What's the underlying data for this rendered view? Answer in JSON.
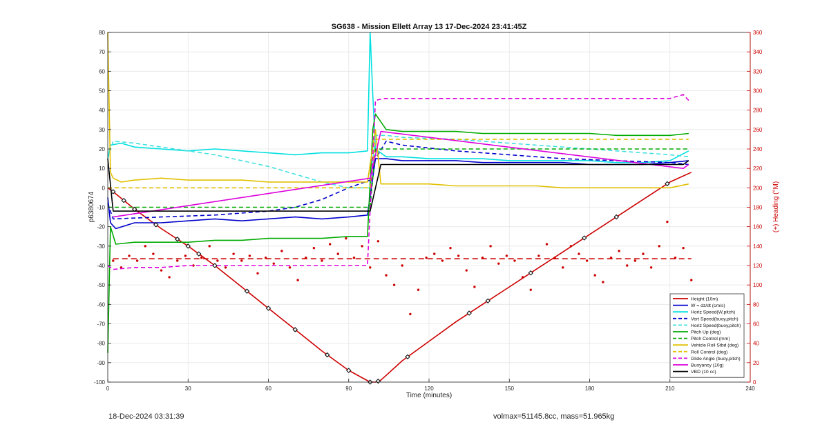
{
  "chart_data": {
    "type": "line",
    "title": "SG638 - Mission Ellett Array 13 17-Dec-2024 23:41:45Z",
    "xlabel": "Time (minutes)",
    "ylabel_left": "p6380674",
    "ylabel_right": "(+) Heading (°M)",
    "xlim": [
      0,
      240
    ],
    "ylim_left": [
      -100,
      80
    ],
    "ylim_right": [
      0,
      360
    ],
    "x_ticks": [
      0,
      30,
      60,
      90,
      120,
      150,
      180,
      210,
      240
    ],
    "y_ticks_left": [
      -100,
      -90,
      -80,
      -70,
      -60,
      -50,
      -40,
      -30,
      -20,
      -10,
      0,
      10,
      20,
      30,
      40,
      50,
      60,
      70,
      80
    ],
    "y_ticks_right": [
      0,
      20,
      40,
      60,
      80,
      100,
      120,
      140,
      160,
      180,
      200,
      220,
      240,
      260,
      280,
      300,
      320,
      340,
      360
    ],
    "grid": true,
    "legend_position": "bottom-right",
    "series": [
      {
        "name": "Height (10m)",
        "color": "#cc0000",
        "style": "solid",
        "x": [
          0,
          2,
          10,
          20,
          30,
          40,
          50,
          60,
          70,
          80,
          90,
          98,
          100,
          102,
          110,
          120,
          130,
          140,
          150,
          160,
          170,
          180,
          190,
          200,
          210,
          218
        ],
        "y": [
          0,
          -2,
          -11,
          -21,
          -30,
          -40,
          -51,
          -62,
          -73,
          -84,
          -94,
          -100,
          -100,
          -99,
          -89,
          -79,
          -69,
          -60,
          -51,
          -42,
          -33,
          -24,
          -15,
          -6,
          3,
          8
        ]
      },
      {
        "name": "W = dz/dt (cm/s)",
        "color": "#0000cc",
        "style": "solid",
        "x": [
          0,
          1,
          3,
          10,
          20,
          30,
          40,
          50,
          60,
          70,
          80,
          90,
          97,
          100,
          104,
          110,
          120,
          130,
          140,
          150,
          160,
          170,
          180,
          190,
          200,
          210,
          217
        ],
        "y": [
          -5,
          -18,
          -21,
          -18,
          -18,
          -17,
          -16,
          -17,
          -16,
          -15,
          -16,
          -15,
          -14,
          15,
          15,
          14,
          14,
          14,
          13,
          13,
          13,
          13,
          12,
          12,
          12,
          13,
          14
        ]
      },
      {
        "name": "Horiz Speed(W,pitch)",
        "color": "#00e0e0",
        "style": "solid",
        "x": [
          0,
          1,
          5,
          10,
          20,
          30,
          40,
          50,
          60,
          70,
          80,
          90,
          97,
          98,
          99,
          100,
          104,
          110,
          120,
          130,
          140,
          150,
          160,
          170,
          180,
          190,
          200,
          210,
          217
        ],
        "y": [
          15,
          22,
          23,
          21,
          20,
          19,
          20,
          19,
          18,
          17,
          18,
          18,
          19,
          80,
          48,
          20,
          16,
          16,
          15,
          15,
          15,
          14,
          14,
          14,
          14,
          13,
          13,
          14,
          19
        ]
      },
      {
        "name": "Vert Speed(buoy,pitch)",
        "color": "#0000cc",
        "style": "dashed",
        "x": [
          0,
          2,
          20,
          40,
          60,
          70,
          80,
          90,
          98,
          100,
          104,
          110,
          130,
          150,
          170,
          190,
          210,
          217
        ],
        "y": [
          -8,
          -16,
          -15,
          -14,
          -12,
          -10,
          -6,
          0,
          4,
          15,
          24,
          22,
          19,
          17,
          15,
          14,
          13,
          12
        ]
      },
      {
        "name": "Horiz Speed(buoy,pitch)",
        "color": "#40e0e0",
        "style": "dashed",
        "x": [
          0,
          2,
          10,
          20,
          30,
          40,
          50,
          60,
          70,
          80,
          90,
          98,
          100,
          104,
          110,
          130,
          150,
          170,
          190,
          210,
          217
        ],
        "y": [
          15,
          24,
          23,
          21,
          19,
          17,
          14,
          11,
          7,
          3,
          0,
          0,
          27,
          27,
          26,
          25,
          23,
          21,
          19,
          17,
          16
        ]
      },
      {
        "name": "Pitch Up (deg)",
        "color": "#00aa00",
        "style": "solid",
        "x": [
          0,
          1,
          3,
          10,
          20,
          30,
          40,
          50,
          60,
          70,
          80,
          90,
          97,
          99,
          100,
          104,
          110,
          120,
          130,
          140,
          150,
          160,
          170,
          180,
          190,
          200,
          210,
          217
        ],
        "y": [
          -85,
          -20,
          -29,
          -28,
          -28,
          -28,
          -27,
          -27,
          -26,
          -26,
          -26,
          -25,
          -25,
          30,
          38,
          30,
          29,
          29,
          29,
          28,
          28,
          28,
          28,
          28,
          27,
          27,
          27,
          28
        ]
      },
      {
        "name": "Pitch Control (mm)",
        "color": "#00aa00",
        "style": "dashed",
        "x": [
          0,
          2,
          98,
          100,
          217
        ],
        "y": [
          -10,
          -10,
          -10,
          20,
          20
        ]
      },
      {
        "name": "Vehicle Roll Stbd (deg)",
        "color": "#e0c000",
        "style": "solid",
        "x": [
          0,
          1,
          2,
          5,
          10,
          20,
          30,
          40,
          50,
          60,
          70,
          80,
          90,
          97,
          100,
          102,
          110,
          120,
          130,
          140,
          150,
          160,
          170,
          180,
          190,
          200,
          210,
          217
        ],
        "y": [
          80,
          8,
          5,
          3,
          4,
          5,
          4,
          4,
          4,
          3,
          3,
          3,
          3,
          3,
          30,
          2,
          2,
          2,
          1,
          1,
          1,
          1,
          0,
          0,
          0,
          0,
          0,
          2
        ]
      },
      {
        "name": "Roll Control (deg)",
        "color": "#e0c000",
        "style": "dashed",
        "x": [
          0,
          2,
          98,
          100,
          217
        ],
        "y": [
          0,
          0,
          0,
          25,
          25
        ]
      },
      {
        "name": "Glide Angle (buoy,pitch)",
        "color": "#dd00dd",
        "style": "dashed",
        "x": [
          0,
          2,
          10,
          20,
          30,
          40,
          50,
          60,
          70,
          80,
          90,
          97,
          100,
          103,
          110,
          120,
          130,
          140,
          150,
          160,
          170,
          180,
          190,
          200,
          210,
          215,
          217
        ],
        "y": [
          -40,
          -42,
          -41,
          -41,
          -40,
          -40,
          -40,
          -40,
          -40,
          -40,
          -40,
          -40,
          45,
          46,
          46,
          46,
          46,
          46,
          46,
          46,
          46,
          46,
          46,
          46,
          46,
          48,
          45
        ]
      },
      {
        "name": "Buoyancy (10g)",
        "color": "#dd00dd",
        "style": "solid",
        "x": [
          2,
          98,
          102,
          215,
          217
        ],
        "y": [
          -15,
          5,
          29,
          10,
          12
        ]
      },
      {
        "name": "VBD (10 cc)",
        "color": "#000000",
        "style": "solid",
        "x": [
          0,
          2,
          98,
          102,
          215,
          217
        ],
        "y": [
          15,
          -12,
          -12,
          12,
          12,
          14
        ]
      }
    ],
    "heading_dots": {
      "color": "#cc0000",
      "mean": 127,
      "x": [
        2,
        5,
        8,
        11,
        14,
        17,
        20,
        23,
        26,
        29,
        32,
        35,
        38,
        41,
        44,
        47,
        50,
        53,
        56,
        59,
        62,
        65,
        68,
        71,
        74,
        77,
        80,
        83,
        86,
        89,
        92,
        95,
        98,
        101,
        104,
        107,
        110,
        113,
        116,
        119,
        122,
        125,
        128,
        131,
        134,
        137,
        140,
        143,
        146,
        149,
        152,
        155,
        158,
        161,
        164,
        167,
        170,
        173,
        176,
        179,
        182,
        185,
        188,
        191,
        194,
        197,
        200,
        203,
        206,
        209,
        212,
        215,
        218
      ],
      "y": [
        125,
        118,
        130,
        125,
        140,
        132,
        115,
        108,
        125,
        130,
        120,
        128,
        140,
        125,
        118,
        132,
        125,
        130,
        112,
        128,
        122,
        135,
        118,
        105,
        128,
        138,
        125,
        142,
        132,
        148,
        128,
        140,
        118,
        145,
        110,
        100,
        120,
        70,
        95,
        128,
        132,
        125,
        138,
        130,
        115,
        98,
        128,
        140,
        122,
        130,
        125,
        108,
        95,
        130,
        142,
        128,
        118,
        140,
        132,
        125,
        110,
        103,
        128,
        135,
        120,
        125,
        132,
        118,
        140,
        165,
        128,
        138,
        105
      ]
    },
    "height_markers_x": [
      2,
      6,
      10,
      18,
      26,
      30,
      34,
      40,
      52,
      60,
      70,
      82,
      90,
      98,
      101,
      112,
      135,
      142,
      158,
      178,
      190,
      209
    ]
  },
  "footer": {
    "timestamp": "18-Dec-2024 03:31:39",
    "volume_mass": "volmax=51145.8cc, mass=51.965kg"
  }
}
